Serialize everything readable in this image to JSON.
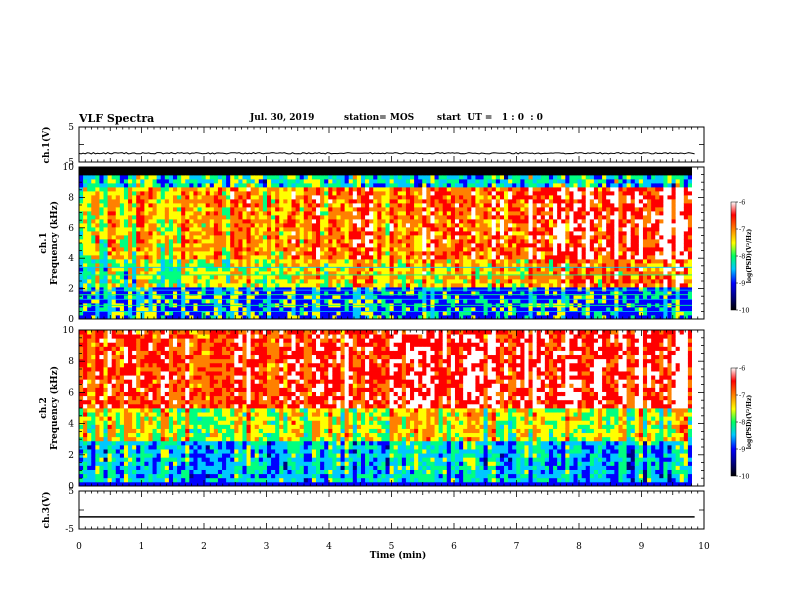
{
  "header": {
    "title": "VLF Spectra",
    "date": "Jul. 30, 2019",
    "station": "station= MOS",
    "start": "start  UT =   1 : 0  : 0"
  },
  "colors": {
    "waveform": "#000000",
    "colormap": [
      "#000000",
      "#000080",
      "#0000ff",
      "#00c8ff",
      "#00ff80",
      "#ffff00",
      "#ff8000",
      "#ff0000",
      "#ffffff"
    ]
  },
  "chart_data": [
    {
      "type": "line",
      "panel": "ch.1 waveform",
      "ylabel": "ch.1(V)",
      "ylim": [
        -5,
        5
      ],
      "ytick_labels": [
        "5",
        "-5"
      ],
      "series": [
        {
          "values": "approximately constant near -2.5 V across 0–9.85 min"
        }
      ],
      "approx_level": -2.5
    },
    {
      "type": "heatmap",
      "panel": "ch.1 spectrogram",
      "ylabel": "ch.1\nFrequency (kHz)",
      "ylabel_lines": [
        "ch.1",
        "Frequency (kHz)"
      ],
      "ylim": [
        0,
        10
      ],
      "ytick_labels": [
        "0",
        "2",
        "4",
        "6",
        "8",
        "10"
      ],
      "xlim": [
        0,
        9.85
      ],
      "colorbar": {
        "label": "log(PSD)(V²/Hz)",
        "range": [
          -10,
          -6
        ],
        "tick_labels": [
          "-6",
          "-7",
          "-8",
          "-9",
          "-10"
        ]
      },
      "notes": "black band above ~9.5 kHz; dense red/green emissions 2–8 kHz; horizontal tone lines below 2 kHz"
    },
    {
      "type": "heatmap",
      "panel": "ch.2 spectrogram",
      "ylabel": "ch.2\nFrequency (kHz)",
      "ylabel_lines": [
        "ch.2",
        "Frequency (kHz)"
      ],
      "ylim": [
        0,
        10
      ],
      "ytick_labels": [
        "0",
        "2",
        "4",
        "6",
        "8",
        "10"
      ],
      "xlim": [
        0,
        9.85
      ],
      "colorbar": {
        "label": "log(PSD)(V²/Hz)",
        "range": [
          -10,
          -6
        ],
        "tick_labels": [
          "-6",
          "-7",
          "-8",
          "-9",
          "-10"
        ]
      },
      "notes": "strong red/white broadband above ~5 kHz; blue/green below ~5 kHz"
    },
    {
      "type": "line",
      "panel": "ch.3 waveform",
      "ylabel": "ch.3(V)",
      "ylim": [
        -5,
        5
      ],
      "ytick_labels": [
        "5",
        "-5"
      ],
      "xlabel": "Time (min)",
      "xlim": [
        0,
        10
      ],
      "xtick_labels": [
        "0",
        "1",
        "2",
        "3",
        "4",
        "5",
        "6",
        "7",
        "8",
        "9",
        "10"
      ],
      "series": [
        {
          "values": "constant near -1.8 V across 0–9.85 min"
        }
      ],
      "approx_level": -1.8
    }
  ]
}
